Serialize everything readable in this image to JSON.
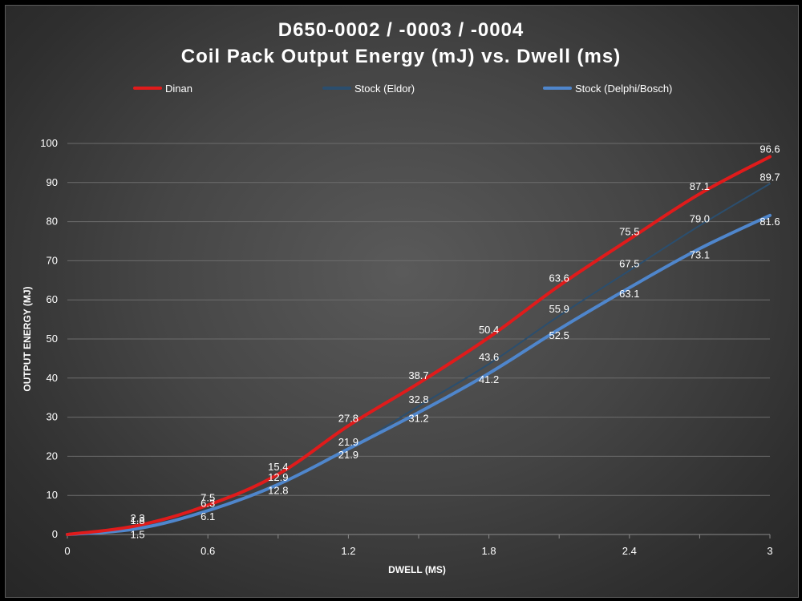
{
  "chart_data": {
    "type": "line",
    "title": "D650-0002 / -0003 / -0004",
    "subtitle": "Coil Pack Output Energy (mJ) vs. Dwell (ms)",
    "xlabel": "DWELL (MS)",
    "ylabel": "OUTPUT ENERGY (MJ)",
    "xlim": [
      0,
      3
    ],
    "ylim": [
      0,
      100
    ],
    "xticks": [
      0,
      0.6,
      1.2,
      1.8,
      2.4,
      3
    ],
    "xtick_labels": [
      "0",
      "0.6",
      "1.2",
      "1.8",
      "2.4",
      "3"
    ],
    "yticks": [
      0,
      10,
      20,
      30,
      40,
      50,
      60,
      70,
      80,
      90,
      100
    ],
    "ytick_labels": [
      "0",
      "10",
      "20",
      "30",
      "40",
      "50",
      "60",
      "70",
      "80",
      "90",
      "100"
    ],
    "grid": "horizontal",
    "legend_position": "top",
    "x": [
      0,
      0.3,
      0.6,
      0.9,
      1.2,
      1.5,
      1.8,
      2.1,
      2.4,
      2.7,
      3.0
    ],
    "series": [
      {
        "name": "Dinan",
        "color": "#e01b1b",
        "values": [
          0,
          2.3,
          7.5,
          15.4,
          27.8,
          38.7,
          50.4,
          63.6,
          75.5,
          87.1,
          96.6
        ],
        "labels": [
          "",
          "2.3",
          "7.5",
          "15.4",
          "27.8",
          "38.7",
          "50.4",
          "63.6",
          "75.5",
          "87.1",
          "96.6"
        ]
      },
      {
        "name": "Stock (Eldor)",
        "color": "#2b4e6e",
        "values": [
          0,
          1.8,
          6.3,
          12.9,
          21.9,
          32.8,
          43.6,
          55.9,
          67.5,
          79.0,
          89.7
        ],
        "labels": [
          "",
          "1.8",
          "6.3",
          "12.9",
          "21.9",
          "32.8",
          "43.6",
          "55.9",
          "67.5",
          "79.0",
          "89.7"
        ]
      },
      {
        "name": "Stock (Delphi/Bosch)",
        "color": "#4f86cc",
        "values": [
          0,
          1.5,
          6.1,
          12.8,
          21.9,
          31.2,
          41.2,
          52.5,
          63.1,
          73.1,
          81.6
        ],
        "labels": [
          "",
          "1.5",
          "6.1",
          "12.8",
          "21.9",
          "31.2",
          "41.2",
          "52.5",
          "63.1",
          "73.1",
          "81.6"
        ]
      }
    ]
  }
}
